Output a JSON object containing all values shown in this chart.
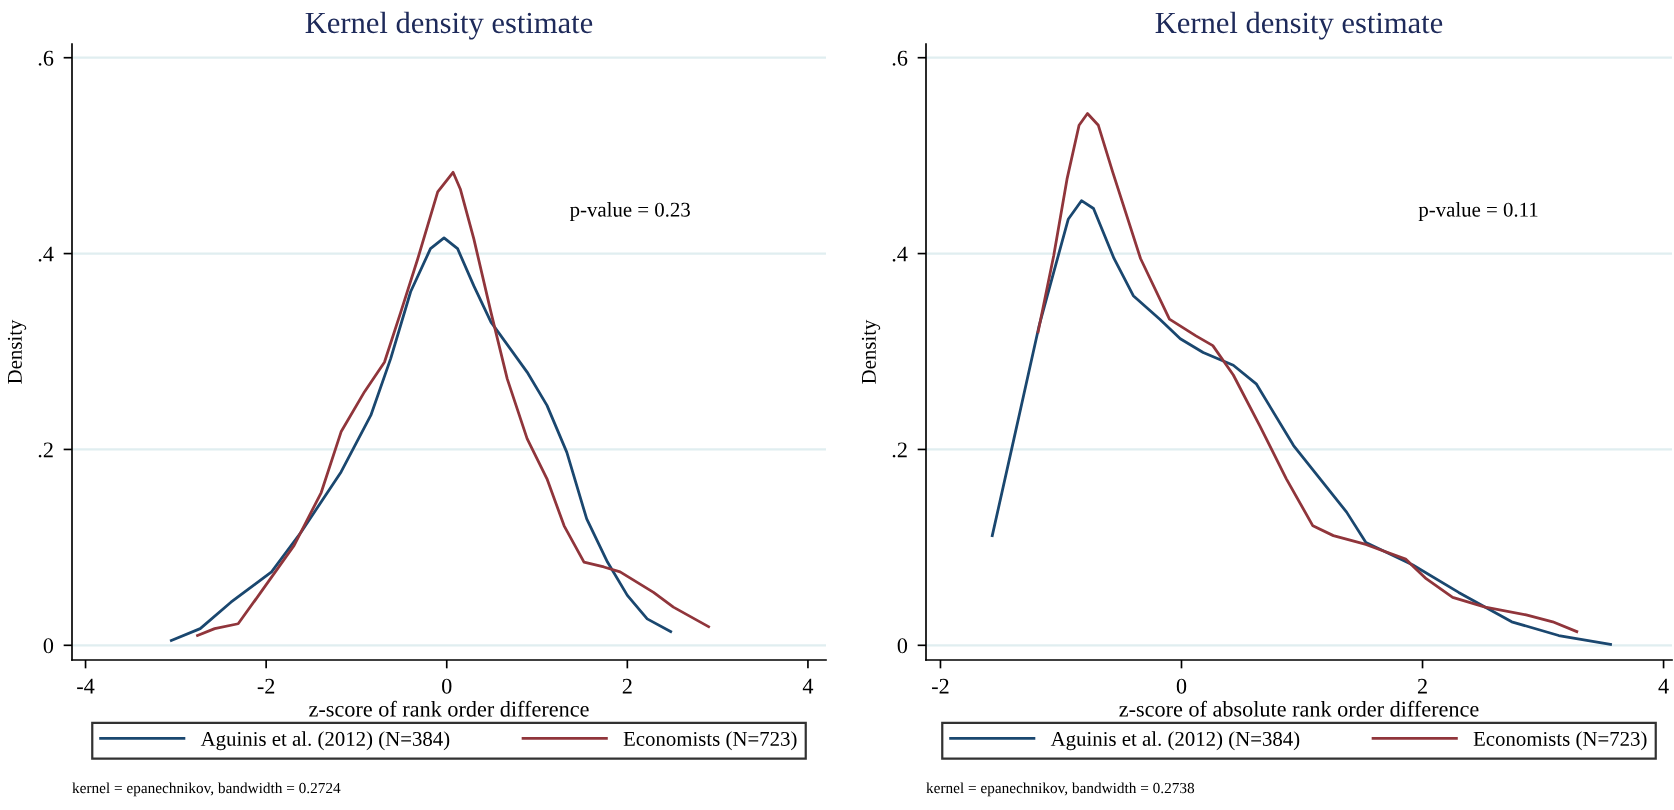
{
  "chart_data": [
    {
      "type": "line",
      "title": "Kernel density estimate",
      "xlabel": "z-score of rank order difference",
      "ylabel": "Density",
      "xlim": [
        -4.15,
        4.2
      ],
      "xticks": [
        -4,
        -2,
        0,
        2,
        4
      ],
      "ylim": [
        -0.015,
        0.614
      ],
      "yticks": [
        0,
        {
          "value": 0.2,
          "label": ".2"
        },
        {
          "value": 0.4,
          "label": ".4"
        },
        {
          "value": 0.6,
          "label": ".6"
        }
      ],
      "grid": "y",
      "legend": "bottom",
      "annotations": [
        "p-value = 0.23",
        "kernel = epanechnikov, bandwidth = 0.2724"
      ],
      "series": [
        {
          "name": "Aguinis et al. (2012) (N=384)",
          "color": "#1a476f",
          "x": [
            -3.05,
            -2.73,
            -2.39,
            -1.94,
            -1.61,
            -1.17,
            -0.84,
            -0.62,
            -0.4,
            -0.18,
            -0.03,
            0.12,
            0.3,
            0.49,
            0.89,
            1.11,
            1.33,
            1.55,
            1.78,
            2.0,
            2.22,
            2.48
          ],
          "values": [
            0.005,
            0.017,
            0.044,
            0.075,
            0.116,
            0.177,
            0.235,
            0.293,
            0.361,
            0.405,
            0.416,
            0.405,
            0.367,
            0.33,
            0.279,
            0.245,
            0.197,
            0.129,
            0.085,
            0.051,
            0.027,
            0.014
          ]
        },
        {
          "name": "Economists (N=723)",
          "color": "#90353b",
          "x": [
            -2.76,
            -2.57,
            -2.31,
            -2.06,
            -1.69,
            -1.39,
            -1.17,
            -0.91,
            -0.69,
            -0.51,
            -0.32,
            -0.1,
            0.07,
            0.15,
            0.3,
            0.49,
            0.67,
            0.89,
            1.11,
            1.3,
            1.52,
            1.74,
            1.92,
            2.29,
            2.51,
            2.9
          ],
          "values": [
            0.01,
            0.017,
            0.022,
            0.054,
            0.102,
            0.156,
            0.218,
            0.259,
            0.289,
            0.34,
            0.395,
            0.463,
            0.483,
            0.466,
            0.415,
            0.34,
            0.272,
            0.211,
            0.17,
            0.122,
            0.085,
            0.08,
            0.075,
            0.054,
            0.039,
            0.019
          ]
        }
      ]
    },
    {
      "type": "line",
      "title": "Kernel density estimate",
      "xlabel": "z-score of absolute rank order difference",
      "ylabel": "Density",
      "xlim": [
        -2.12,
        4.07
      ],
      "xticks": [
        -2,
        0,
        2,
        4
      ],
      "ylim": [
        -0.015,
        0.614
      ],
      "yticks": [
        0,
        {
          "value": 0.2,
          "label": ".2"
        },
        {
          "value": 0.4,
          "label": ".4"
        },
        {
          "value": 0.6,
          "label": ".6"
        }
      ],
      "grid": "y",
      "legend": "bottom",
      "annotations": [
        "p-value = 0.11",
        "kernel = epanechnikov, bandwidth = 0.2738"
      ],
      "series": [
        {
          "name": "Aguinis et al. (2012) (N=384)",
          "color": "#1a476f",
          "x": [
            -1.57,
            -1.39,
            -1.18,
            -1.06,
            -0.94,
            -0.83,
            -0.73,
            -0.56,
            -0.4,
            -0.18,
            -0.01,
            0.18,
            0.43,
            0.62,
            0.93,
            1.15,
            1.37,
            1.53,
            1.92,
            2.3,
            2.74,
            3.13,
            3.56
          ],
          "values": [
            0.112,
            0.211,
            0.327,
            0.381,
            0.435,
            0.454,
            0.446,
            0.395,
            0.357,
            0.333,
            0.313,
            0.299,
            0.286,
            0.267,
            0.204,
            0.17,
            0.136,
            0.105,
            0.082,
            0.054,
            0.024,
            0.01,
            0.001
          ]
        },
        {
          "name": "Economists (N=723)",
          "color": "#90353b",
          "x": [
            -1.19,
            -1.06,
            -0.95,
            -0.85,
            -0.78,
            -0.69,
            -0.57,
            -0.34,
            -0.1,
            0.12,
            0.26,
            0.43,
            0.65,
            0.87,
            1.09,
            1.26,
            1.53,
            1.86,
            2.03,
            2.25,
            2.52,
            2.86,
            3.08,
            3.28
          ],
          "values": [
            0.32,
            0.398,
            0.476,
            0.531,
            0.543,
            0.531,
            0.483,
            0.395,
            0.333,
            0.316,
            0.306,
            0.276,
            0.224,
            0.17,
            0.122,
            0.112,
            0.103,
            0.088,
            0.068,
            0.049,
            0.039,
            0.031,
            0.024,
            0.014
          ]
        }
      ]
    }
  ]
}
